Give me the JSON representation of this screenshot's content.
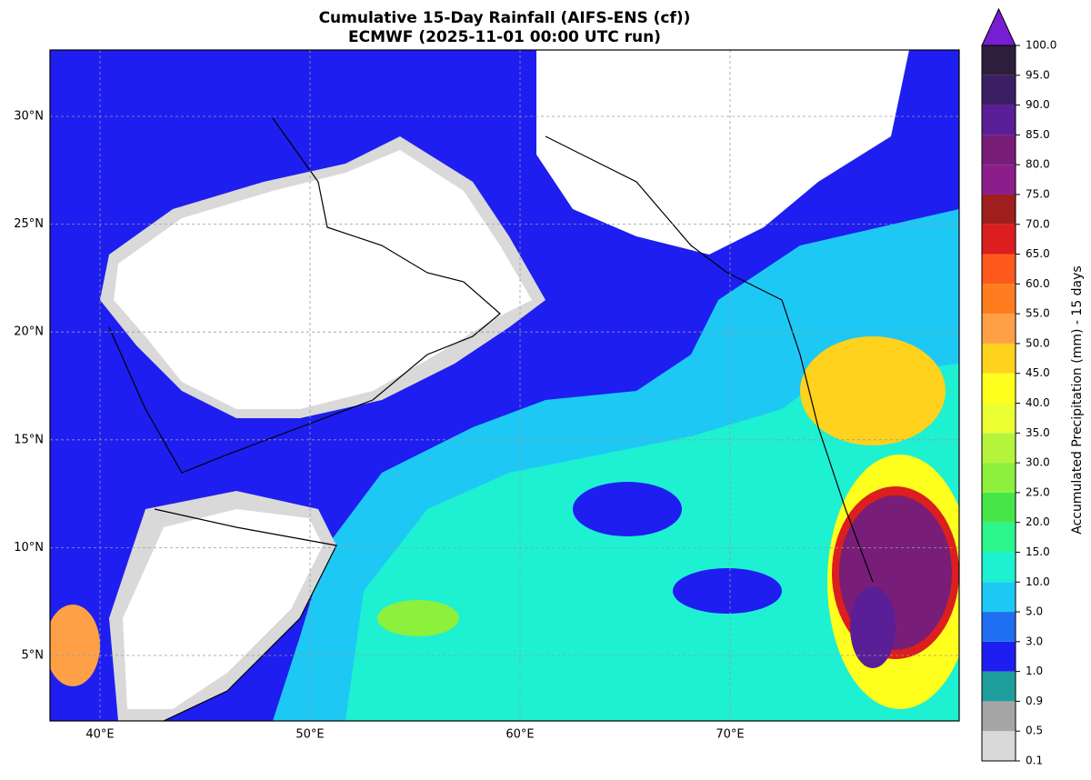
{
  "title": "Cumulative 15-Day Rainfall (AIFS-ENS (cf))",
  "subtitle": "ECMWF (2025-11-01 00:00 UTC run)",
  "lon_labels": [
    "40°E",
    "50°E",
    "60°E",
    "70°E"
  ],
  "lat_labels": [
    "5°N",
    "10°N",
    "15°N",
    "20°N",
    "25°N",
    "30°N"
  ],
  "colorbar": {
    "label": "Accumulated Precipitation (mm) - 15 days",
    "ticks": [
      "0.1",
      "0.5",
      "0.9",
      "1.0",
      "3.0",
      "5.0",
      "10.0",
      "15.0",
      "20.0",
      "25.0",
      "30.0",
      "35.0",
      "40.0",
      "45.0",
      "50.0",
      "55.0",
      "60.0",
      "65.0",
      "70.0",
      "75.0",
      "80.0",
      "85.0",
      "90.0",
      "95.0",
      "100.0"
    ],
    "colors": [
      "#d9d9d9",
      "#a6a6a6",
      "#1f9e9e",
      "#1e1ef0",
      "#1f6ff0",
      "#1ec8f5",
      "#1ef0d2",
      "#2cf58c",
      "#46e646",
      "#8cf03c",
      "#b4f53c",
      "#ebff32",
      "#ffff1e",
      "#ffd21e",
      "#ffa046",
      "#ff7d1e",
      "#ff5a1e",
      "#dc1e1e",
      "#a01e1e",
      "#8c1e8c",
      "#781e78",
      "#5a1e96",
      "#3c1e64",
      "#2d1e3c"
    ],
    "extend_color": "#781ed2"
  }
}
